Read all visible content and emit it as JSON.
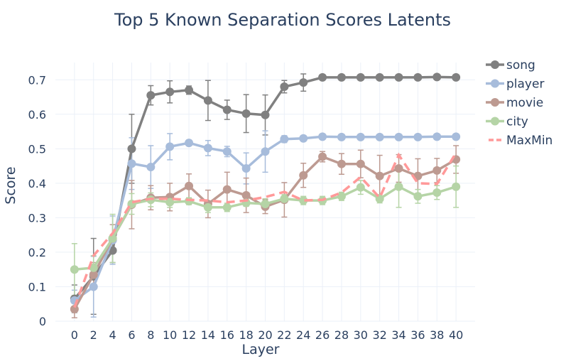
{
  "chart_data": {
    "type": "line",
    "title": "Top 5 Known Separation Scores Latents",
    "xlabel": "Layer",
    "ylabel": "Score",
    "xlim": [
      -2,
      42
    ],
    "ylim": [
      0,
      0.75
    ],
    "x": [
      0,
      2,
      4,
      6,
      8,
      10,
      12,
      14,
      16,
      18,
      20,
      22,
      24,
      26,
      28,
      30,
      32,
      34,
      36,
      38,
      40
    ],
    "x_ticks": [
      0,
      2,
      4,
      6,
      8,
      10,
      12,
      14,
      16,
      18,
      20,
      22,
      24,
      26,
      28,
      30,
      32,
      34,
      36,
      38,
      40
    ],
    "x_tick_labels": [
      "0",
      "2",
      "4",
      "6",
      "8",
      "10",
      "12",
      "14",
      "16",
      "18",
      "20",
      "22",
      "24",
      "26",
      "28",
      "30",
      "32",
      "34",
      "36",
      "38",
      "40"
    ],
    "y_ticks": [
      0,
      0.1,
      0.2,
      0.3,
      0.4,
      0.5,
      0.6,
      0.7
    ],
    "y_tick_labels": [
      "0",
      "0.1",
      "0.2",
      "0.3",
      "0.4",
      "0.5",
      "0.6",
      "0.7"
    ],
    "grid": true,
    "legend_position": "right",
    "series": [
      {
        "name": "song",
        "color": "#808080",
        "style": "line-markers",
        "values": [
          0.065,
          0.13,
          0.205,
          0.5,
          0.655,
          0.665,
          0.67,
          0.64,
          0.613,
          0.602,
          0.598,
          0.68,
          0.692,
          0.707,
          0.707,
          0.707,
          0.707,
          0.707,
          0.707,
          0.708,
          0.707
        ],
        "errors": [
          0.04,
          0.11,
          0.035,
          0.1,
          0.028,
          0.032,
          0.012,
          0.058,
          0.028,
          0.055,
          0.058,
          0.018,
          0.025,
          0.007,
          0.005,
          0.005,
          0.004,
          0.004,
          0.004,
          0.004,
          0.004
        ]
      },
      {
        "name": "player",
        "color": "#a7bcdb",
        "style": "line-markers",
        "values": [
          0.06,
          0.1,
          0.235,
          0.457,
          0.447,
          0.506,
          0.517,
          0.502,
          0.492,
          0.443,
          0.492,
          0.528,
          0.53,
          0.535,
          0.534,
          0.534,
          0.534,
          0.534,
          0.534,
          0.535,
          0.535
        ],
        "errors": [
          0.03,
          0.088,
          0.07,
          0.075,
          0.062,
          0.038,
          0.008,
          0.022,
          0.015,
          0.045,
          0.06,
          0.01,
          0.008,
          0.006,
          0.005,
          0.004,
          0.004,
          0.004,
          0.004,
          0.004,
          0.004
        ]
      },
      {
        "name": "movie",
        "color": "#bd9a91",
        "style": "line-markers",
        "values": [
          0.035,
          0.135,
          0.24,
          0.338,
          0.358,
          0.36,
          0.392,
          0.34,
          0.382,
          0.365,
          0.332,
          0.352,
          0.423,
          0.477,
          0.456,
          0.456,
          0.421,
          0.443,
          0.421,
          0.437,
          0.469
        ],
        "errors": [
          0.025,
          0.035,
          0.04,
          0.07,
          0.035,
          0.04,
          0.035,
          0.04,
          0.05,
          0.05,
          0.02,
          0.05,
          0.035,
          0.015,
          0.03,
          0.04,
          0.06,
          0.04,
          0.05,
          0.035,
          0.04
        ]
      },
      {
        "name": "city",
        "color": "#b5d4a6",
        "style": "line-markers",
        "values": [
          0.15,
          0.155,
          0.24,
          0.34,
          0.352,
          0.345,
          0.348,
          0.33,
          0.33,
          0.343,
          0.34,
          0.355,
          0.35,
          0.35,
          0.362,
          0.388,
          0.355,
          0.39,
          0.362,
          0.373,
          0.39
        ],
        "errors": [
          0.075,
          0.035,
          0.07,
          0.03,
          0.02,
          0.015,
          0.01,
          0.015,
          0.012,
          0.01,
          0.015,
          0.012,
          0.012,
          0.012,
          0.012,
          0.02,
          0.012,
          0.06,
          0.02,
          0.02,
          0.06
        ]
      },
      {
        "name": "MaxMin",
        "color": "#ff9999",
        "style": "dash",
        "values": [
          0.04,
          0.19,
          0.255,
          0.345,
          0.355,
          0.355,
          0.352,
          0.35,
          0.345,
          0.35,
          0.36,
          0.375,
          0.35,
          0.352,
          0.373,
          0.418,
          0.358,
          0.482,
          0.4,
          0.398,
          0.488
        ]
      }
    ]
  }
}
